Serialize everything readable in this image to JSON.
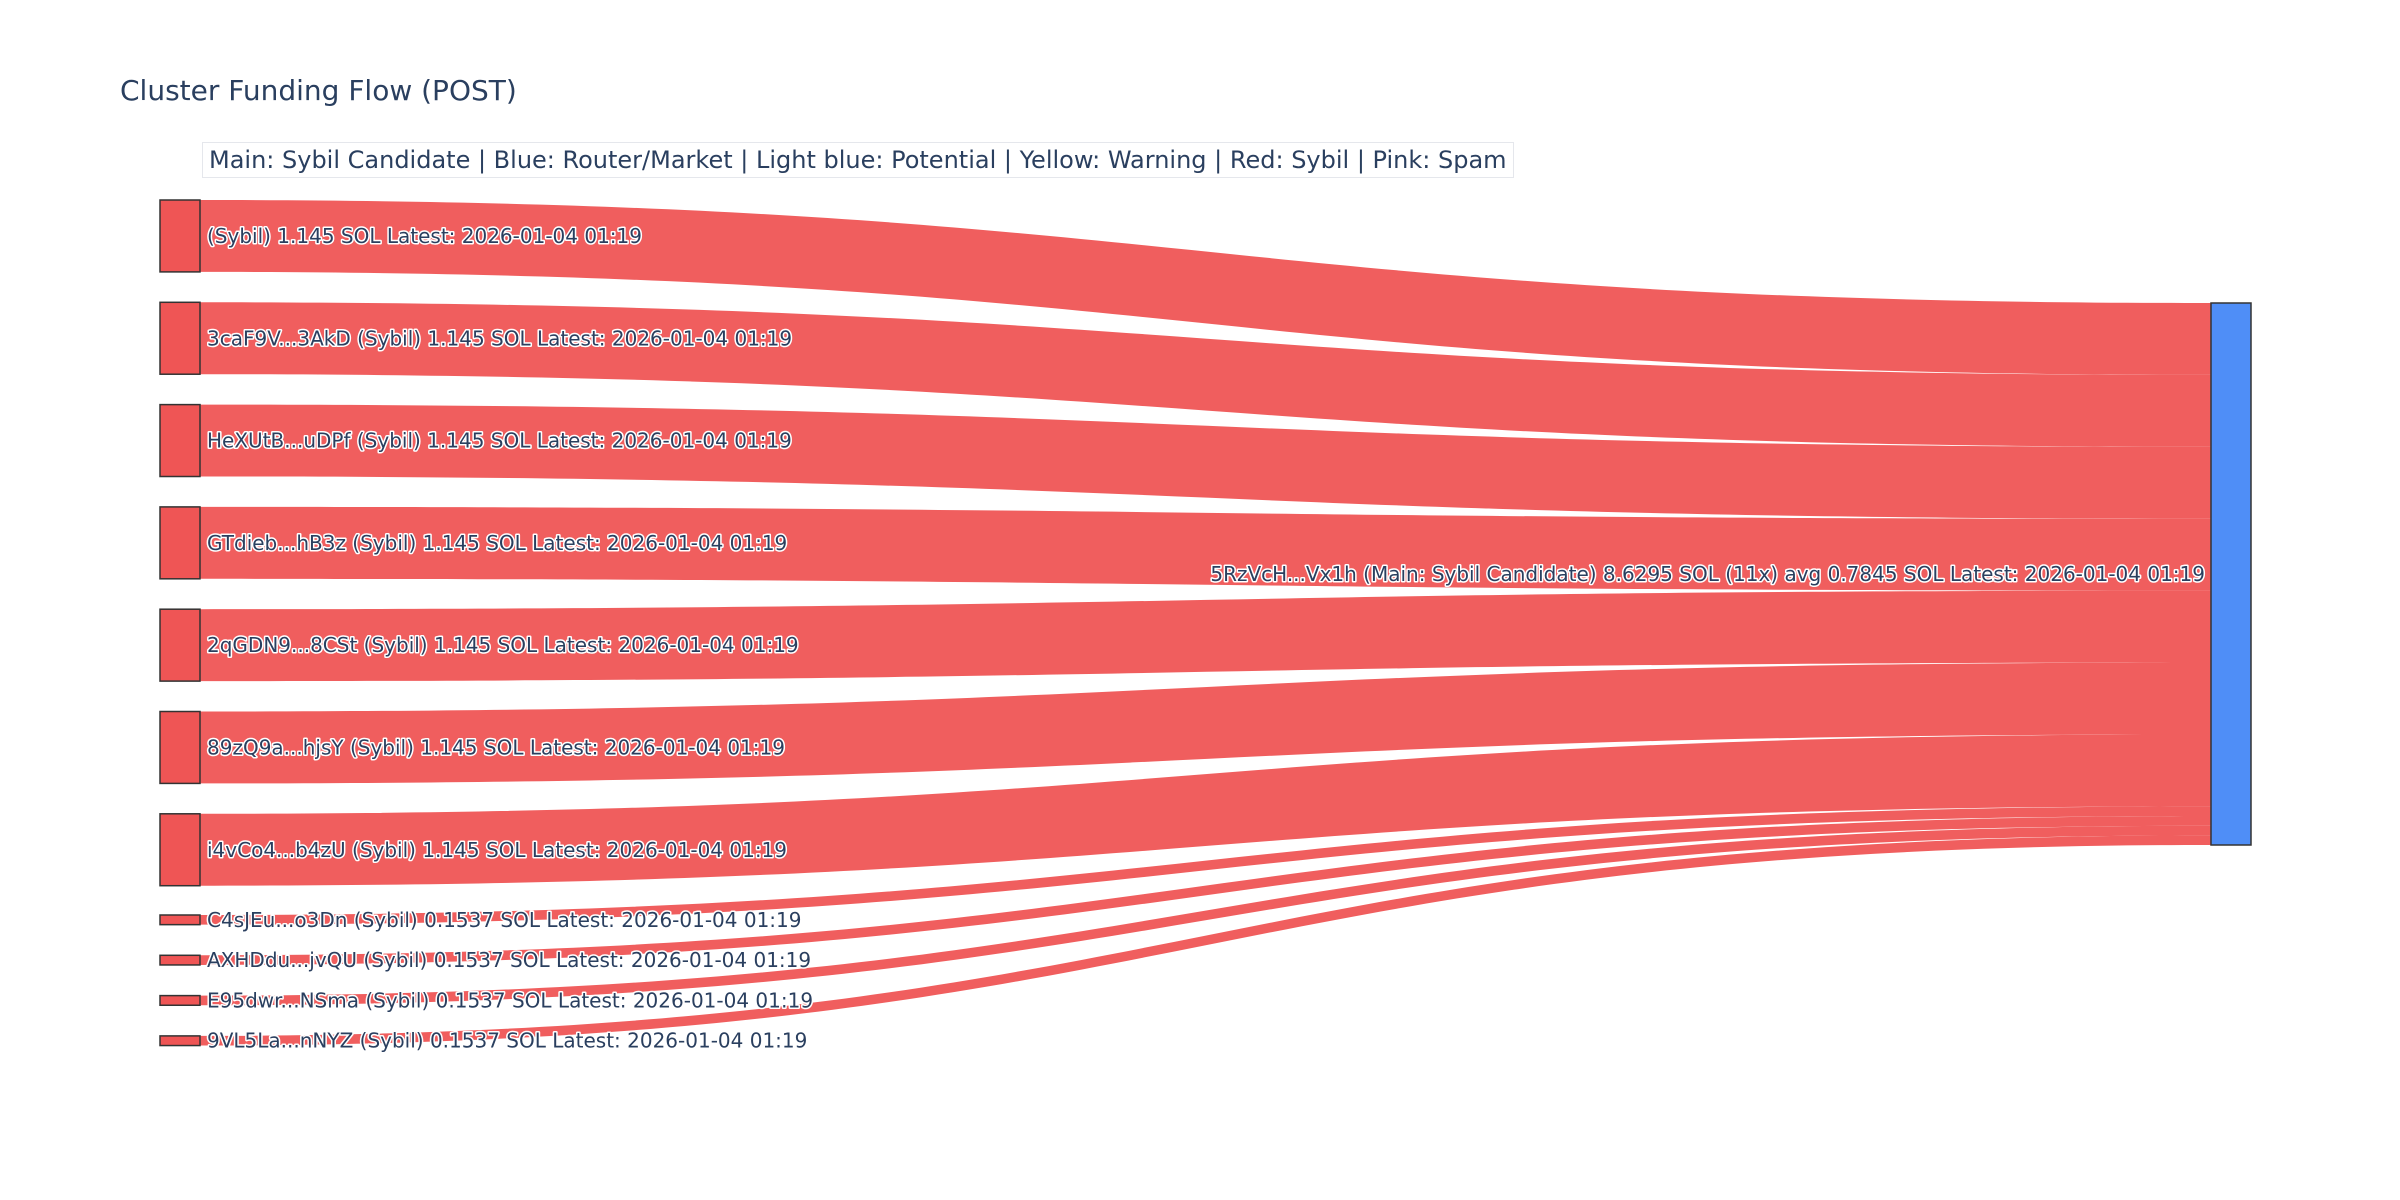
{
  "chart_data": {
    "type": "sankey",
    "title": "Cluster Funding Flow (POST)",
    "legend_text": "Main: Sybil Candidate  |  Blue: Router/Market | Light blue: Potential | Yellow: Warning | Red: Sybil | Pink: Spam",
    "colors": {
      "sybil": "#ef5555",
      "main": "#4f8ef7",
      "link": "#ef5555",
      "text": "#2a3f5f"
    },
    "target": {
      "label": "5RzVcH...Vx1h (Main: Sybil Candidate) 8.6295 SOL (11x) avg 0.7845 SOL Latest: 2026-01-04 01:19",
      "value": 8.6295
    },
    "sources": [
      {
        "label": "(Sybil) 1.145 SOL Latest: 2026-01-04 01:19",
        "value": 1.145
      },
      {
        "label": "3caF9V...3AkD (Sybil) 1.145 SOL Latest: 2026-01-04 01:19",
        "value": 1.145
      },
      {
        "label": "HeXUtB...uDPf (Sybil) 1.145 SOL Latest: 2026-01-04 01:19",
        "value": 1.145
      },
      {
        "label": "GTdieb...hB3z (Sybil) 1.145 SOL Latest: 2026-01-04 01:19",
        "value": 1.145
      },
      {
        "label": "2qGDN9...8CSt (Sybil) 1.145 SOL Latest: 2026-01-04 01:19",
        "value": 1.145
      },
      {
        "label": "89zQ9a...hjsY (Sybil) 1.145 SOL Latest: 2026-01-04 01:19",
        "value": 1.145
      },
      {
        "label": "i4vCo4...b4zU (Sybil) 1.145 SOL Latest: 2026-01-04 01:19",
        "value": 1.145
      },
      {
        "label": "C4sJEu...o3Dn (Sybil) 0.1537 SOL Latest: 2026-01-04 01:19",
        "value": 0.1537
      },
      {
        "label": "AXHDdu...jvQU (Sybil) 0.1537 SOL Latest: 2026-01-04 01:19",
        "value": 0.1537
      },
      {
        "label": "E95dwr...NSma (Sybil) 0.1537 SOL Latest: 2026-01-04 01:19",
        "value": 0.1537
      },
      {
        "label": "9VL5La...nNYZ (Sybil) 0.1537 SOL Latest: 2026-01-04 01:19",
        "value": 0.1537
      }
    ]
  }
}
